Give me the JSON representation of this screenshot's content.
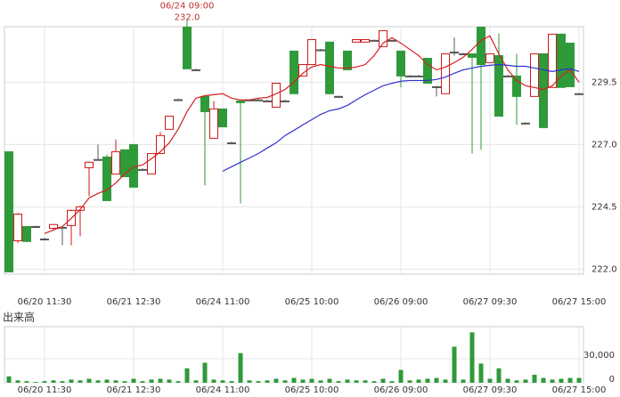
{
  "chart_data": {
    "type": "candlestick",
    "categories": [
      null,
      null,
      null,
      null,
      "06/20 11:30",
      null,
      null,
      null,
      null,
      null,
      null,
      null,
      null,
      null,
      "06/21 12:30",
      null,
      null,
      null,
      null,
      null,
      null,
      null,
      null,
      null,
      "06/24 11:00",
      null,
      null,
      null,
      null,
      null,
      null,
      null,
      null,
      null,
      "06/25 10:00",
      null,
      null,
      null,
      null,
      null,
      null,
      null,
      null,
      null,
      "06/26 09:00",
      null,
      null,
      null,
      null,
      null,
      null,
      null,
      null,
      null,
      "06/27 09:30",
      null,
      null,
      null,
      null,
      null,
      null,
      null,
      null,
      null,
      "06/27 15:00"
    ],
    "open": [
      226.71,
      223.14,
      223.71,
      223.71,
      223.21,
      223.64,
      223.68,
      223.75,
      224.36,
      226.07,
      226.4,
      226.5,
      225.82,
      226.79,
      227.0,
      226.0,
      225.82,
      226.64,
      227.61,
      228.8,
      231.71,
      230.0,
      228.93,
      227.25,
      228.43,
      227.07,
      228.75,
      228.79,
      228.79,
      228.75,
      228.5,
      228.75,
      230.75,
      229.75,
      230.21,
      230.8,
      231.11,
      228.93,
      230.75,
      231.11,
      231.11,
      231.18,
      230.93,
      231.18,
      230.75,
      229.75,
      229.75,
      230.46,
      229.32,
      229.04,
      230.71,
      230.64,
      230.64,
      231.71,
      230.29,
      230.57,
      229.75,
      229.75,
      227.86,
      228.93,
      230.64,
      229.29,
      231.43,
      231.07,
      229.04
    ],
    "high": [
      226.71,
      224.25,
      223.71,
      223.75,
      223.25,
      223.82,
      223.7,
      224.4,
      224.54,
      226.32,
      227.0,
      226.6,
      227.2,
      226.79,
      227.0,
      226.04,
      226.64,
      227.5,
      228.14,
      228.84,
      232.0,
      230.04,
      228.93,
      228.75,
      228.43,
      227.11,
      228.79,
      228.82,
      228.86,
      228.79,
      229.46,
      228.79,
      230.75,
      230.21,
      231.21,
      230.84,
      231.11,
      228.96,
      230.75,
      231.21,
      231.21,
      231.21,
      231.57,
      231.21,
      230.75,
      229.79,
      229.79,
      230.46,
      229.36,
      230.64,
      231.29,
      230.68,
      230.64,
      231.71,
      230.64,
      231.46,
      229.79,
      230.64,
      227.89,
      230.64,
      230.64,
      231.43,
      231.43,
      231.07,
      229.07
    ],
    "low": [
      221.89,
      223.04,
      223.11,
      223.68,
      223.18,
      223.6,
      222.96,
      222.96,
      223.32,
      224.93,
      226.36,
      224.75,
      225.82,
      225.71,
      225.29,
      225.96,
      225.82,
      226.64,
      227.61,
      228.76,
      230.04,
      229.96,
      225.36,
      227.25,
      227.71,
      227.04,
      224.64,
      228.75,
      228.75,
      228.71,
      228.5,
      228.71,
      229.04,
      229.75,
      230.21,
      230.76,
      229.04,
      228.89,
      230.0,
      231.11,
      231.11,
      231.14,
      230.93,
      231.14,
      229.29,
      229.71,
      229.71,
      229.46,
      228.93,
      229.04,
      230.57,
      230.6,
      226.64,
      226.79,
      230.29,
      228.14,
      229.71,
      227.79,
      227.82,
      228.93,
      227.68,
      229.29,
      229.29,
      229.32,
      229.0
    ],
    "close": [
      221.89,
      224.21,
      223.11,
      223.71,
      223.21,
      223.79,
      223.68,
      224.36,
      224.5,
      226.29,
      226.4,
      224.75,
      226.71,
      225.71,
      225.29,
      226.0,
      226.64,
      227.36,
      228.14,
      228.8,
      230.04,
      230.0,
      228.32,
      228.43,
      227.71,
      227.07,
      228.68,
      228.79,
      228.79,
      228.75,
      229.46,
      228.75,
      229.04,
      230.21,
      231.21,
      230.8,
      229.04,
      228.93,
      230.0,
      231.21,
      231.21,
      231.18,
      231.57,
      231.18,
      229.75,
      229.75,
      229.75,
      229.46,
      229.32,
      230.64,
      230.71,
      230.64,
      230.5,
      230.21,
      230.64,
      228.14,
      229.75,
      228.93,
      227.86,
      230.64,
      227.68,
      231.43,
      229.29,
      229.32,
      229.04
    ],
    "up_color": "#d01818",
    "down_color": "#2e9a3a",
    "flat_color": "#555555",
    "moving_averages": [
      {
        "color": "#d42020",
        "values": [
          null,
          null,
          null,
          null,
          223.43,
          223.57,
          223.71,
          224.04,
          224.39,
          224.86,
          225.04,
          225.18,
          225.46,
          225.82,
          226.11,
          226.18,
          226.43,
          226.71,
          227.07,
          227.61,
          228.32,
          228.86,
          228.96,
          229.0,
          229.04,
          228.86,
          228.79,
          228.79,
          228.86,
          228.89,
          229.04,
          229.21,
          229.5,
          229.86,
          230.11,
          230.21,
          230.14,
          230.07,
          230.07,
          230.11,
          230.21,
          230.57,
          231.07,
          231.29,
          231.07,
          230.82,
          230.57,
          230.21,
          230.0,
          230.11,
          230.29,
          230.5,
          230.82,
          231.18,
          231.36,
          230.64,
          230.0,
          229.57,
          229.36,
          229.29,
          229.21,
          229.36,
          229.75,
          230.0,
          229.5
        ]
      },
      {
        "color": "#3030d0",
        "values": [
          null,
          null,
          null,
          null,
          null,
          null,
          null,
          null,
          null,
          null,
          null,
          null,
          null,
          null,
          null,
          null,
          null,
          null,
          null,
          null,
          null,
          null,
          null,
          null,
          225.93,
          226.11,
          226.29,
          226.46,
          226.64,
          226.86,
          227.07,
          227.36,
          227.57,
          227.79,
          228.0,
          228.21,
          228.36,
          228.43,
          228.57,
          228.79,
          229.0,
          229.18,
          229.36,
          229.46,
          229.54,
          229.57,
          229.57,
          229.57,
          229.61,
          229.71,
          229.86,
          230.0,
          230.07,
          230.14,
          230.18,
          230.21,
          230.18,
          230.14,
          230.14,
          230.07,
          230.0,
          229.93,
          230.0,
          230.04,
          229.93
        ]
      }
    ],
    "annotation": {
      "label": "06/24 09:00",
      "value": 232.0,
      "value_label": "232.0"
    },
    "ylim": [
      221.8,
      232.0
    ],
    "yticks": [
      {
        "value": 222.0,
        "label": "222.0"
      },
      224.5,
      {
        "value": 227.0,
        "label": "227.0"
      },
      229.5
    ],
    "grid": true,
    "volume": {
      "title": "出来高",
      "color": "#2e9a3a",
      "values": [
        8000,
        3000,
        2000,
        1000,
        2000,
        3000,
        2000,
        4000,
        3000,
        5000,
        3000,
        4000,
        3000,
        2000,
        5000,
        2000,
        4000,
        5000,
        4000,
        2000,
        18000,
        3000,
        25000,
        4000,
        3000,
        2000,
        37000,
        3000,
        2000,
        3000,
        5000,
        3000,
        6000,
        4000,
        5000,
        3000,
        5000,
        2000,
        4000,
        3000,
        3000,
        2000,
        5000,
        2000,
        16000,
        3000,
        4000,
        5000,
        6000,
        4000,
        45000,
        4000,
        63000,
        24000,
        5000,
        18000,
        5000,
        3000,
        4000,
        10000,
        6000,
        4000,
        5000,
        6000,
        6000
      ],
      "ylim": [
        0,
        70000
      ],
      "yticks": [
        0,
        {
          "value": 30000,
          "label": "30,000"
        }
      ]
    }
  }
}
